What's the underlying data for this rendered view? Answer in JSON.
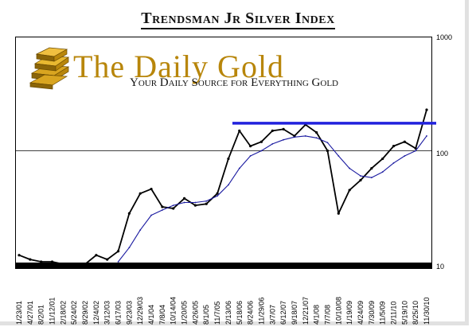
{
  "title": "Trendsman Jr Silver Index",
  "logo": {
    "name": "The Daily Gold",
    "tagline": "Your Daily Source for Everything Gold"
  },
  "colors": {
    "price": "#000000",
    "moving_average": "#1a1aa0",
    "resistance": "#2222dd",
    "logo_gold": "#b8860b"
  },
  "chart_data": {
    "type": "line",
    "title": "Trendsman Jr Silver Index",
    "y_scale": "log",
    "ylim": [
      10,
      1000
    ],
    "y_ticks": [
      "1000",
      "100",
      "10"
    ],
    "x_tick_labels": [
      "1/23/01",
      "4/27/01",
      "8/2/01",
      "11/12/01",
      "2/18/02",
      "5/24/02",
      "8/29/02",
      "12/4/02",
      "3/12/03",
      "6/17/03",
      "9/23/03",
      "12/29/03",
      "4/1/04",
      "7/8/04",
      "10/14/04",
      "1/20/05",
      "4/26/05",
      "8/1/05",
      "11/7/05",
      "2/13/06",
      "5/18/06",
      "8/24/06",
      "11/29/06",
      "3/7/07",
      "6/12/07",
      "9/18/07",
      "12/21/07",
      "4/1/08",
      "7/7/08",
      "10/10/08",
      "1/19/09",
      "4/24/09",
      "7/30/09",
      "11/5/09",
      "2/11/10",
      "5/19/10",
      "8/25/10",
      "11/30/10"
    ],
    "series": [
      {
        "role": "price",
        "x": [
          "1/23/01",
          "4/27/01",
          "8/2/01",
          "11/12/01",
          "2/18/02",
          "5/24/02",
          "8/29/02",
          "12/4/02",
          "3/12/03",
          "6/17/03",
          "9/23/03",
          "12/29/03",
          "4/1/04",
          "7/8/04",
          "10/14/04",
          "1/20/05",
          "4/26/05",
          "8/1/05",
          "11/7/05",
          "2/13/06",
          "5/18/06",
          "8/24/06",
          "11/29/06",
          "3/7/07",
          "6/12/07",
          "9/18/07",
          "12/21/07",
          "4/1/08",
          "7/7/08",
          "10/10/08",
          "1/19/09",
          "4/24/09",
          "7/30/09",
          "11/5/09",
          "2/11/10",
          "5/19/10",
          "8/25/10",
          "11/30/10"
        ],
        "values": [
          12,
          11,
          10.5,
          10.5,
          10,
          10,
          10,
          12,
          11,
          13,
          28,
          42,
          46,
          32,
          31,
          38,
          33,
          34,
          42,
          85,
          150,
          110,
          120,
          150,
          155,
          135,
          170,
          145,
          100,
          28,
          45,
          55,
          70,
          85,
          110,
          120,
          105,
          230
        ]
      },
      {
        "role": "moving_average",
        "x": [
          "1/23/01",
          "4/27/01",
          "8/2/01",
          "11/12/01",
          "2/18/02",
          "5/24/02",
          "8/29/02",
          "12/4/02",
          "3/12/03",
          "6/17/03",
          "9/23/03",
          "12/29/03",
          "4/1/04",
          "7/8/04",
          "10/14/04",
          "1/20/05",
          "4/26/05",
          "8/1/05",
          "11/7/05",
          "2/13/06",
          "5/18/06",
          "8/24/06",
          "11/29/06",
          "3/7/07",
          "6/12/07",
          "9/18/07",
          "12/21/07",
          "4/1/08",
          "7/7/08",
          "10/10/08",
          "1/19/09",
          "4/24/09",
          "7/30/09",
          "11/5/09",
          "2/11/10",
          "5/19/10",
          "8/25/10",
          "11/30/10"
        ],
        "values": [
          null,
          null,
          null,
          null,
          null,
          null,
          null,
          null,
          null,
          10.5,
          14,
          20,
          27,
          30,
          33,
          35,
          35,
          36,
          40,
          50,
          70,
          90,
          100,
          115,
          125,
          132,
          135,
          130,
          118,
          90,
          70,
          60,
          58,
          65,
          78,
          90,
          100,
          135
        ]
      }
    ],
    "resistance_level": 175,
    "grid": false,
    "legend": "none"
  }
}
